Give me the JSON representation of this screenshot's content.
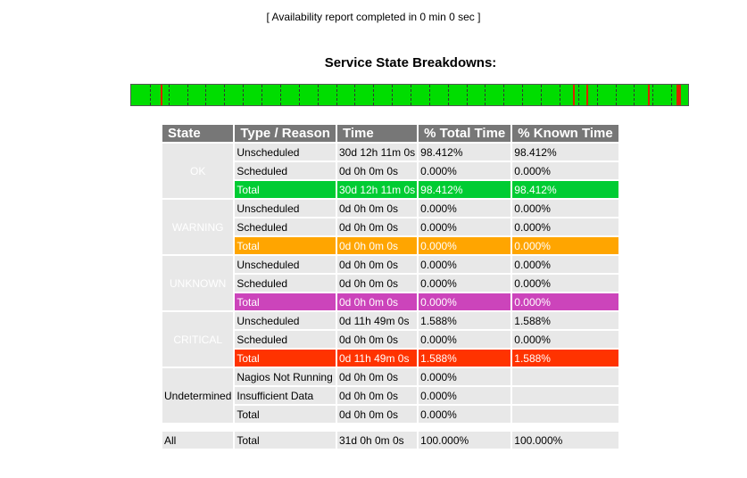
{
  "report_status": "[ Availability report completed in 0 min 0 sec ]",
  "section_title": "Service State Breakdowns:",
  "timeline": {
    "ok_color": "#00dd00",
    "critical_color": "#dd2200",
    "marker_count": 30
  },
  "table": {
    "headers": [
      "State",
      "Type / Reason",
      "Time",
      "% Total Time",
      "% Known Time"
    ],
    "ok": {
      "label": "OK",
      "rows": [
        [
          "Unscheduled",
          "30d 12h 11m 0s",
          "98.412%",
          "98.412%"
        ],
        [
          "Scheduled",
          "0d 0h 0m 0s",
          "0.000%",
          "0.000%"
        ],
        [
          "Total",
          "30d 12h 11m 0s",
          "98.412%",
          "98.412%"
        ]
      ]
    },
    "warning": {
      "label": "WARNING",
      "rows": [
        [
          "Unscheduled",
          "0d 0h 0m 0s",
          "0.000%",
          "0.000%"
        ],
        [
          "Scheduled",
          "0d 0h 0m 0s",
          "0.000%",
          "0.000%"
        ],
        [
          "Total",
          "0d 0h 0m 0s",
          "0.000%",
          "0.000%"
        ]
      ]
    },
    "unknown": {
      "label": "UNKNOWN",
      "rows": [
        [
          "Unscheduled",
          "0d 0h 0m 0s",
          "0.000%",
          "0.000%"
        ],
        [
          "Scheduled",
          "0d 0h 0m 0s",
          "0.000%",
          "0.000%"
        ],
        [
          "Total",
          "0d 0h 0m 0s",
          "0.000%",
          "0.000%"
        ]
      ]
    },
    "critical": {
      "label": "CRITICAL",
      "rows": [
        [
          "Unscheduled",
          "0d 11h 49m 0s",
          "1.588%",
          "1.588%"
        ],
        [
          "Scheduled",
          "0d 0h 0m 0s",
          "0.000%",
          "0.000%"
        ],
        [
          "Total",
          "0d 11h 49m 0s",
          "1.588%",
          "1.588%"
        ]
      ]
    },
    "undetermined": {
      "label": "Undetermined",
      "rows": [
        [
          "Nagios Not Running",
          "0d 0h 0m 0s",
          "0.000%",
          ""
        ],
        [
          "Insufficient Data",
          "0d 0h 0m 0s",
          "0.000%",
          ""
        ],
        [
          "Total",
          "0d 0h 0m 0s",
          "0.000%",
          ""
        ]
      ]
    },
    "all": {
      "label": "All",
      "row": [
        "Total",
        "31d 0h 0m 0s",
        "100.000%",
        "100.000%"
      ]
    }
  }
}
